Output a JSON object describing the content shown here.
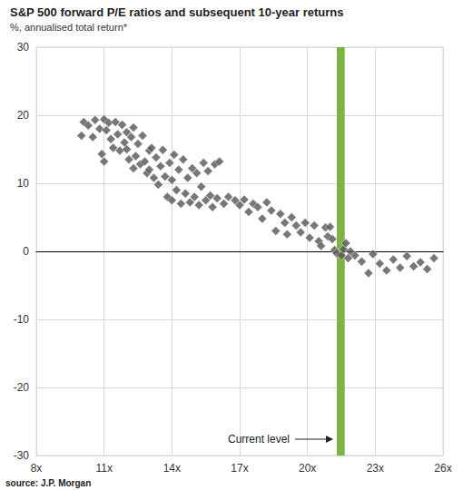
{
  "chart_data": {
    "type": "scatter",
    "title": "S&P 500 forward P/E ratios and subsequent 10-year returns",
    "subtitle": "%, annualised total return*",
    "source": "source: J.P. Morgan",
    "x": [
      10.0,
      10.1,
      10.3,
      10.5,
      10.6,
      10.8,
      10.9,
      11.0,
      11.0,
      11.1,
      11.2,
      11.3,
      11.4,
      11.5,
      11.6,
      11.7,
      11.8,
      11.9,
      12.0,
      12.0,
      12.1,
      12.2,
      12.3,
      12.3,
      12.4,
      12.5,
      12.6,
      12.7,
      12.8,
      12.9,
      13.0,
      13.0,
      13.1,
      13.2,
      13.3,
      13.4,
      13.5,
      13.6,
      13.7,
      13.8,
      13.9,
      14.0,
      14.0,
      14.1,
      14.2,
      14.3,
      14.4,
      14.5,
      14.6,
      14.7,
      14.8,
      14.9,
      15.0,
      15.1,
      15.2,
      15.3,
      15.4,
      15.5,
      15.6,
      15.7,
      15.8,
      15.9,
      16.0,
      16.1,
      16.3,
      16.5,
      16.8,
      17.0,
      17.2,
      17.4,
      17.6,
      17.8,
      18.0,
      18.2,
      18.4,
      18.6,
      18.8,
      19.0,
      19.1,
      19.3,
      19.5,
      19.7,
      19.9,
      20.1,
      20.3,
      20.5,
      20.6,
      20.8,
      20.9,
      21.0,
      21.1,
      21.2,
      21.3,
      21.5,
      21.6,
      21.7,
      21.8,
      21.9,
      22.1,
      22.4,
      22.7,
      22.9,
      23.2,
      23.5,
      23.8,
      24.1,
      24.4,
      24.7,
      25.0,
      25.3,
      25.6
    ],
    "values": [
      17.0,
      19.0,
      18.5,
      16.8,
      19.3,
      18.0,
      14.3,
      13.2,
      19.4,
      17.8,
      18.9,
      16.5,
      15.2,
      19.0,
      17.2,
      14.8,
      18.6,
      16.0,
      15.0,
      17.5,
      13.5,
      16.8,
      12.2,
      18.2,
      14.0,
      15.8,
      12.8,
      17.0,
      13.2,
      11.5,
      14.8,
      12.0,
      15.2,
      10.8,
      13.8,
      9.8,
      12.5,
      14.9,
      11.0,
      8.0,
      13.0,
      7.5,
      10.5,
      14.2,
      9.0,
      12.0,
      7.0,
      13.5,
      8.5,
      10.8,
      7.2,
      12.2,
      8.0,
      11.5,
      6.8,
      9.5,
      13.0,
      7.5,
      11.8,
      8.2,
      6.5,
      12.8,
      7.8,
      13.2,
      7.0,
      8.0,
      7.5,
      6.8,
      7.6,
      5.8,
      7.0,
      6.5,
      4.8,
      7.2,
      6.0,
      3.0,
      5.5,
      4.2,
      2.5,
      5.0,
      3.8,
      2.8,
      4.2,
      2.0,
      3.8,
      1.5,
      0.8,
      3.5,
      2.2,
      3.6,
      1.8,
      0.2,
      -0.3,
      -0.6,
      0.3,
      1.2,
      -1.0,
      0.0,
      -0.6,
      -1.5,
      -3.2,
      -0.4,
      -1.8,
      -2.8,
      -1.2,
      -2.4,
      -0.7,
      -2.2,
      -1.6,
      -2.6,
      -1.0
    ],
    "color": "#555555",
    "marker": "diamond",
    "xlim": [
      8,
      26
    ],
    "xticks": [
      {
        "value": 8,
        "label": "8x"
      },
      {
        "value": 11,
        "label": "11x"
      },
      {
        "value": 14,
        "label": "14x"
      },
      {
        "value": 17,
        "label": "17x"
      },
      {
        "value": 20,
        "label": "20x"
      },
      {
        "value": 23,
        "label": "23x"
      },
      {
        "value": 26,
        "label": "26x"
      }
    ],
    "ylim": [
      -30,
      30
    ],
    "yticks": [
      -30,
      -20,
      -10,
      0,
      10,
      20,
      30
    ],
    "grid": true,
    "current_level": {
      "label": "Current level",
      "xmin": 21.3,
      "xmax": 21.65,
      "color": "#7cb342"
    }
  }
}
